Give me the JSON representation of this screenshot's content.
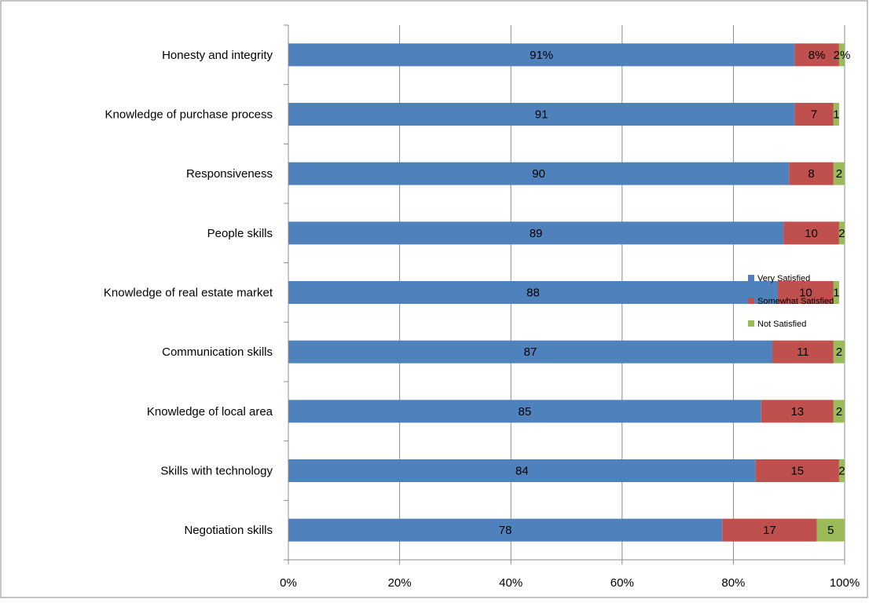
{
  "chart_data": {
    "type": "bar",
    "orientation": "horizontal",
    "stacked": true,
    "categories": [
      "Honesty and integrity",
      "Knowledge of purchase process",
      "Responsiveness",
      "People skills",
      "Knowledge of real estate market",
      "Communication skills",
      "Knowledge of local area",
      "Skills with technology",
      "Negotiation skills"
    ],
    "series": [
      {
        "name": "Very Satisfied",
        "color": "#4F81BD",
        "values": [
          91,
          91,
          90,
          89,
          88,
          87,
          85,
          84,
          78
        ],
        "labels": [
          "91%",
          "91",
          "90",
          "89",
          "88",
          "87",
          "85",
          "84",
          "78"
        ]
      },
      {
        "name": "Somewhat Satisfied",
        "color": "#C0504D",
        "values": [
          8,
          7,
          8,
          10,
          10,
          11,
          13,
          15,
          17
        ],
        "labels": [
          "8%",
          "7",
          "8",
          "10",
          "10",
          "11",
          "13",
          "15",
          "17"
        ]
      },
      {
        "name": "Not Satisfied",
        "color": "#9BBB59",
        "values": [
          2,
          1,
          2,
          2,
          1,
          2,
          2,
          2,
          5
        ],
        "labels": [
          "2%",
          "1",
          "2",
          "2",
          "1",
          "2",
          "2",
          "2",
          "5"
        ]
      }
    ],
    "xlim": [
      0,
      100
    ],
    "xticks": [
      "0%",
      "20%",
      "40%",
      "60%",
      "80%",
      "100%"
    ],
    "grid": "vertical",
    "legend_position": "right",
    "title": "",
    "xlabel": "",
    "ylabel": ""
  }
}
